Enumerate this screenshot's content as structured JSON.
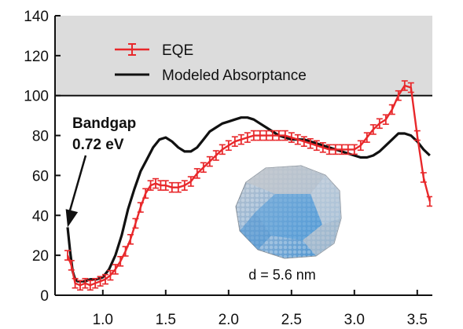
{
  "chart_data": {
    "type": "line",
    "title": "",
    "xlabel": "",
    "ylabel": "",
    "xlim": [
      0.62,
      3.62
    ],
    "ylim": [
      0,
      140
    ],
    "x_ticks": [
      1.0,
      1.5,
      2.0,
      2.5,
      3.0,
      3.5
    ],
    "x_tick_labels": [
      "1.0",
      "1.5",
      "2.0",
      "2.5",
      "3.0",
      "3.5"
    ],
    "y_ticks": [
      0,
      20,
      40,
      60,
      80,
      100,
      120,
      140
    ],
    "y_tick_labels": [
      "0",
      "20",
      "40",
      "60",
      "80",
      "100",
      "120",
      "140"
    ],
    "shaded_region": {
      "y_from": 100,
      "y_to": 140,
      "color": "#dcdcdc"
    },
    "legend": {
      "placement": "top-left",
      "entries": [
        {
          "label": "EQE",
          "color": "#e8282b"
        },
        {
          "label": "Modeled Absorptance",
          "color": "#111111"
        }
      ]
    },
    "series": [
      {
        "name": "EQE",
        "color": "#e8282b",
        "error_bars": true,
        "x": [
          0.72,
          0.75,
          0.78,
          0.82,
          0.86,
          0.9,
          0.94,
          0.98,
          1.02,
          1.06,
          1.1,
          1.14,
          1.18,
          1.22,
          1.26,
          1.3,
          1.34,
          1.38,
          1.42,
          1.46,
          1.5,
          1.55,
          1.6,
          1.65,
          1.7,
          1.75,
          1.8,
          1.85,
          1.9,
          1.95,
          2.0,
          2.05,
          2.1,
          2.15,
          2.2,
          2.25,
          2.3,
          2.35,
          2.4,
          2.45,
          2.5,
          2.55,
          2.6,
          2.65,
          2.7,
          2.75,
          2.8,
          2.85,
          2.9,
          2.95,
          3.0,
          3.05,
          3.1,
          3.15,
          3.2,
          3.25,
          3.3,
          3.35,
          3.4,
          3.45,
          3.5,
          3.55,
          3.6
        ],
        "y": [
          20,
          15,
          6,
          5,
          6,
          5,
          6,
          7,
          8,
          10,
          13,
          17,
          22,
          28,
          36,
          44,
          51,
          55,
          56,
          55,
          55,
          54,
          54,
          55,
          57,
          61,
          64,
          67,
          70,
          73,
          75,
          77,
          78,
          79,
          80,
          80,
          80,
          80,
          80,
          80,
          79,
          78,
          77,
          76,
          75,
          74,
          73,
          73,
          73,
          73,
          73,
          75,
          79,
          83,
          86,
          88,
          93,
          100,
          105,
          104,
          80,
          59,
          47
        ]
      },
      {
        "name": "Modeled Absorptance",
        "color": "#111111",
        "error_bars": false,
        "x": [
          0.72,
          0.74,
          0.76,
          0.78,
          0.8,
          0.83,
          0.86,
          0.9,
          0.95,
          1.0,
          1.05,
          1.1,
          1.15,
          1.2,
          1.25,
          1.3,
          1.35,
          1.4,
          1.45,
          1.5,
          1.55,
          1.6,
          1.65,
          1.7,
          1.75,
          1.8,
          1.85,
          1.9,
          1.95,
          2.0,
          2.05,
          2.1,
          2.15,
          2.2,
          2.25,
          2.3,
          2.35,
          2.4,
          2.45,
          2.5,
          2.55,
          2.6,
          2.65,
          2.7,
          2.75,
          2.8,
          2.85,
          2.9,
          2.95,
          3.0,
          3.05,
          3.1,
          3.15,
          3.2,
          3.25,
          3.3,
          3.35,
          3.4,
          3.45,
          3.5,
          3.55,
          3.6
        ],
        "y": [
          34,
          22,
          12,
          8,
          7,
          7,
          7,
          8,
          8,
          9,
          13,
          20,
          30,
          43,
          53,
          62,
          68,
          74,
          78,
          79,
          77,
          74,
          72,
          72,
          74,
          78,
          82,
          84,
          86,
          87,
          88,
          89,
          89,
          88,
          86,
          84,
          82,
          80,
          79,
          78,
          78,
          78,
          77,
          76,
          75,
          74,
          73,
          72,
          71,
          70,
          69,
          69,
          70,
          72,
          75,
          78,
          81,
          81,
          80,
          77,
          73,
          70
        ]
      }
    ],
    "annotations": [
      {
        "text_lines": [
          "Bandgap",
          "0.72 eV"
        ],
        "arrow_to": {
          "x": 0.72,
          "y": 34
        }
      }
    ],
    "inset": {
      "caption": "d = 5.6 nm",
      "depicts": "nanocrystal-illustration"
    }
  }
}
